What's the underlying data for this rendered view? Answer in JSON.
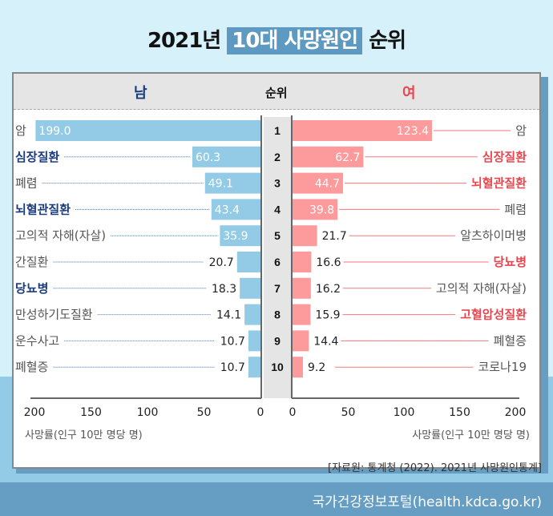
{
  "title": {
    "prefix": "2021년",
    "highlight": "10대 사망원인",
    "suffix": "순위"
  },
  "source": "[자료원: 통계청 (2022). 2021년 사망원인통계]",
  "footer": "국가건강정보포털(health.kdca.go.kr)",
  "colors": {
    "male_bar": "#93cbe7",
    "female_bar": "#fd9a9b",
    "male_bold": "#1a3c7e",
    "female_bold": "#e8474f"
  },
  "chart_data": {
    "type": "bar",
    "headers": {
      "male": "남",
      "rank": "순위",
      "female": "여"
    },
    "ranks": [
      "1",
      "2",
      "3",
      "4",
      "5",
      "6",
      "7",
      "8",
      "9",
      "10"
    ],
    "series": [
      {
        "name": "남",
        "categories": [
          "암",
          "심장질환",
          "폐렴",
          "뇌혈관질환",
          "고의적 자해(자살)",
          "간질환",
          "당뇨병",
          "만성하기도질환",
          "운수사고",
          "폐혈증"
        ],
        "values": [
          199.0,
          60.3,
          49.1,
          43.4,
          35.9,
          20.7,
          18.3,
          14.1,
          10.7,
          10.7
        ],
        "highlighted": [
          false,
          true,
          false,
          true,
          false,
          false,
          true,
          false,
          false,
          false
        ]
      },
      {
        "name": "여",
        "categories": [
          "암",
          "심장질환",
          "뇌혈관질환",
          "폐렴",
          "알츠하이머병",
          "당뇨병",
          "고의적 자해(자살)",
          "고혈압성질환",
          "폐혈증",
          "코로나19"
        ],
        "values": [
          123.4,
          62.7,
          44.7,
          39.8,
          21.7,
          16.6,
          16.2,
          15.9,
          14.4,
          9.2
        ],
        "highlighted": [
          false,
          true,
          true,
          false,
          false,
          true,
          false,
          true,
          false,
          false
        ]
      }
    ],
    "xlim": [
      0,
      200
    ],
    "ticks": [
      "200",
      "150",
      "100",
      "50",
      "0"
    ],
    "ticks_right": [
      "0",
      "50",
      "100",
      "150",
      "200"
    ],
    "xlabel": "사망률(인구 10만 명당 명)"
  }
}
